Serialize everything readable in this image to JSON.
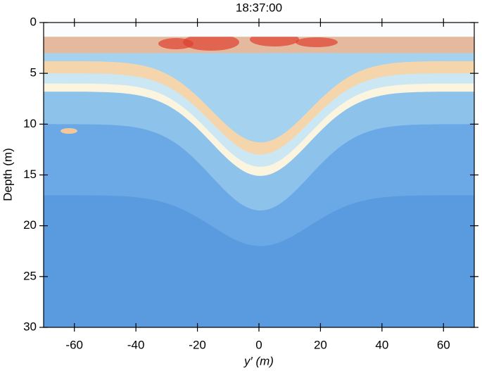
{
  "chart_data": {
    "type": "heatmap",
    "title": "18:37:00",
    "x_label": "y′ (m)",
    "y_label": "Depth (m)",
    "xlim": [
      -70,
      70
    ],
    "ylim": [
      30,
      0
    ],
    "xticks": [
      -60,
      -40,
      -20,
      0,
      20,
      40,
      60
    ],
    "yticks": [
      0,
      5,
      10,
      15,
      20,
      25,
      30
    ]
  }
}
